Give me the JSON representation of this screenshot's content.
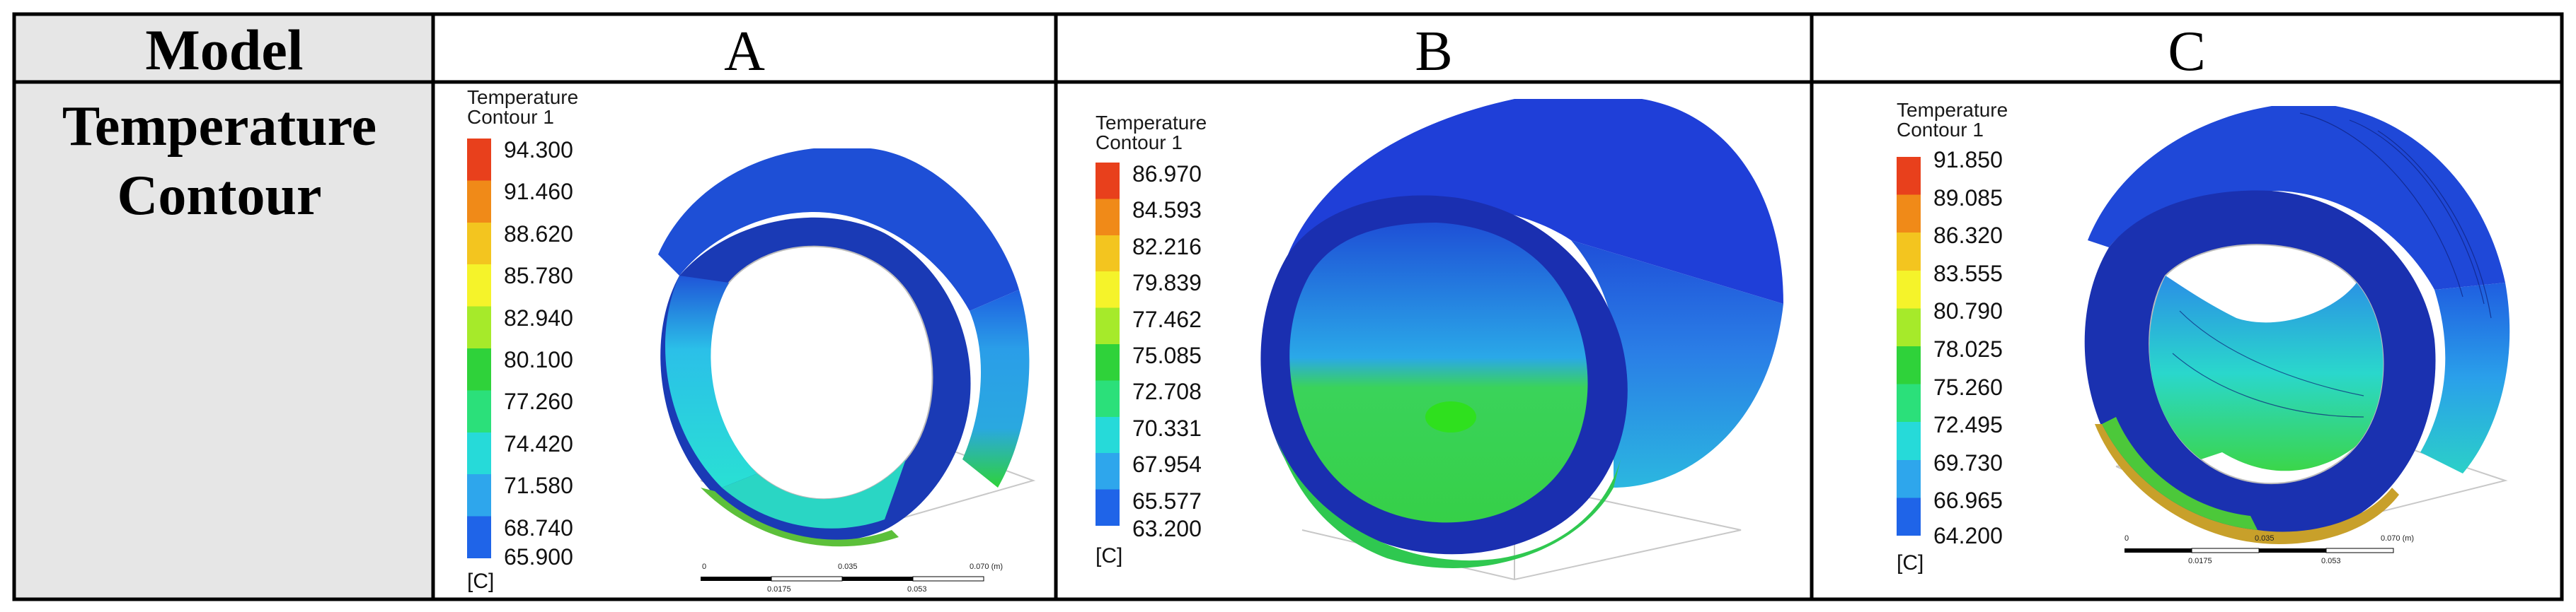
{
  "table": {
    "header_label": "Model",
    "columns": [
      "A",
      "B",
      "C"
    ],
    "row_label_line1": "Temperature",
    "row_label_line2": "Contour"
  },
  "panels": [
    {
      "id": "A",
      "legend_title": "Temperature",
      "legend_subtitle": "Contour 1",
      "unit": "[C]",
      "ticks": [
        "94.300",
        "91.460",
        "88.620",
        "85.780",
        "82.940",
        "80.100",
        "77.260",
        "74.420",
        "71.580",
        "68.740",
        "65.900"
      ],
      "scale_labels": [
        "0",
        "0.035",
        "0.070 (m)",
        "0.0175",
        "0.053"
      ]
    },
    {
      "id": "B",
      "legend_title": "Temperature",
      "legend_subtitle": "Contour 1",
      "unit": "[C]",
      "ticks": [
        "86.970",
        "84.593",
        "82.216",
        "79.839",
        "77.462",
        "75.085",
        "72.708",
        "70.331",
        "67.954",
        "65.577",
        "63.200"
      ],
      "scale_labels": []
    },
    {
      "id": "C",
      "legend_title": "Temperature",
      "legend_subtitle": "Contour 1",
      "unit": "[C]",
      "ticks": [
        "91.850",
        "89.085",
        "86.320",
        "83.555",
        "80.790",
        "78.025",
        "75.260",
        "72.495",
        "69.730",
        "66.965",
        "64.200"
      ],
      "scale_labels": [
        "0",
        "0.035",
        "0.070 (m)",
        "0.0175",
        "0.053"
      ]
    }
  ],
  "colors": {
    "label_cell_bg": "#e6e6e6",
    "border": "#000000",
    "colormap": [
      "#e8401c",
      "#f08a18",
      "#f3c51f",
      "#f5f32a",
      "#a6ea2a",
      "#2fd23a",
      "#2be07a",
      "#26dad9",
      "#2ea6ec",
      "#1f64e8",
      "#1730d8"
    ]
  }
}
